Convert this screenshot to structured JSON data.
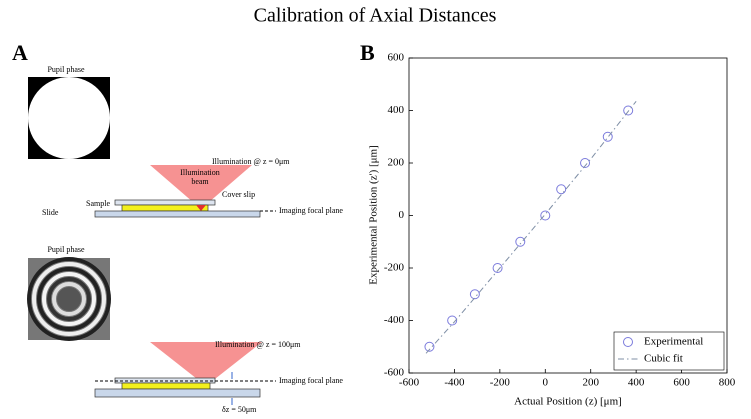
{
  "figure": {
    "title": "Calibration of Axial Distances",
    "panel_a": "A",
    "panel_b": "B"
  },
  "diagram": {
    "top": {
      "pupil_label": "Pupil phase",
      "illumination": "Illumination @ z = 0μm",
      "beam": [
        "Illumination",
        "beam"
      ],
      "cover_slip": "Cover slip",
      "sample": "Sample",
      "slide": "Slide",
      "focal_plane": "Imaging focal plane"
    },
    "bottom": {
      "pupil_label": "Pupil phase",
      "illumination": "Illumination @ z = 100μm",
      "focal_plane": "Imaging focal plane",
      "delta": "δz = 50μm"
    }
  },
  "chart_data": {
    "type": "scatter",
    "x_label": "Actual Position (z)  [μm]",
    "y_label": "Experimental Position (z')  [μm]",
    "xlim": [
      -600,
      800
    ],
    "ylim": [
      -600,
      600
    ],
    "xticks": [
      -600,
      -400,
      -200,
      0,
      200,
      400,
      600,
      800
    ],
    "yticks": [
      -600,
      -400,
      -200,
      0,
      200,
      400,
      600
    ],
    "grid": false,
    "legend": "lower-right",
    "series": [
      {
        "name": "Experimental",
        "color": "#7b7bdc",
        "marker": "circle",
        "x": [
          -510,
          -410,
          -310,
          -210,
          -110,
          0,
          70,
          175,
          275,
          365
        ],
        "values": [
          -500,
          -400,
          -300,
          -200,
          -100,
          0,
          100,
          200,
          300,
          400
        ]
      },
      {
        "name": "Cubic fit",
        "color": "#7f8fa6",
        "marker": "dash-dot",
        "x": [
          -525,
          -400,
          -200,
          0,
          200,
          400
        ],
        "values": [
          -525,
          -405,
          -200,
          5,
          215,
          435
        ]
      }
    ]
  }
}
